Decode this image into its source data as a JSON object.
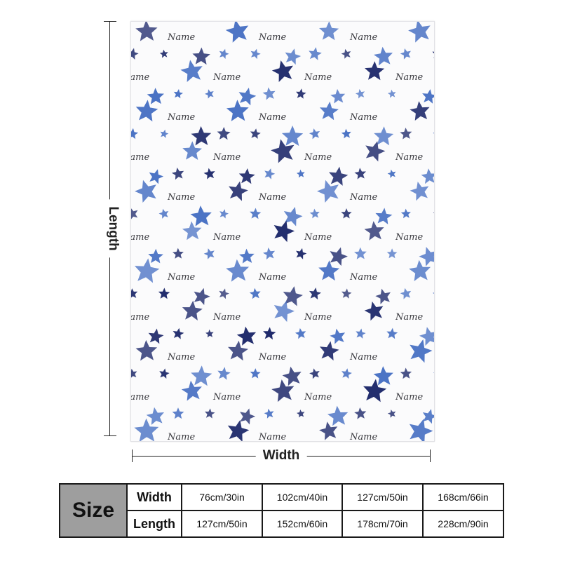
{
  "blanket": {
    "pattern_text": "Name",
    "colors": {
      "dark_star": "#1f2a6b",
      "light_star": "#4a72c4",
      "background": "#fbfbfc"
    }
  },
  "dimensions": {
    "length_label": "Length",
    "width_label": "Width"
  },
  "size_table": {
    "header": "Size",
    "rows": [
      {
        "label": "Width",
        "values": [
          "76cm/30in",
          "102cm/40in",
          "127cm/50in",
          "168cm/66in"
        ]
      },
      {
        "label": "Length",
        "values": [
          "127cm/50in",
          "152cm/60in",
          "178cm/70in",
          "228cm/90in"
        ]
      }
    ]
  }
}
